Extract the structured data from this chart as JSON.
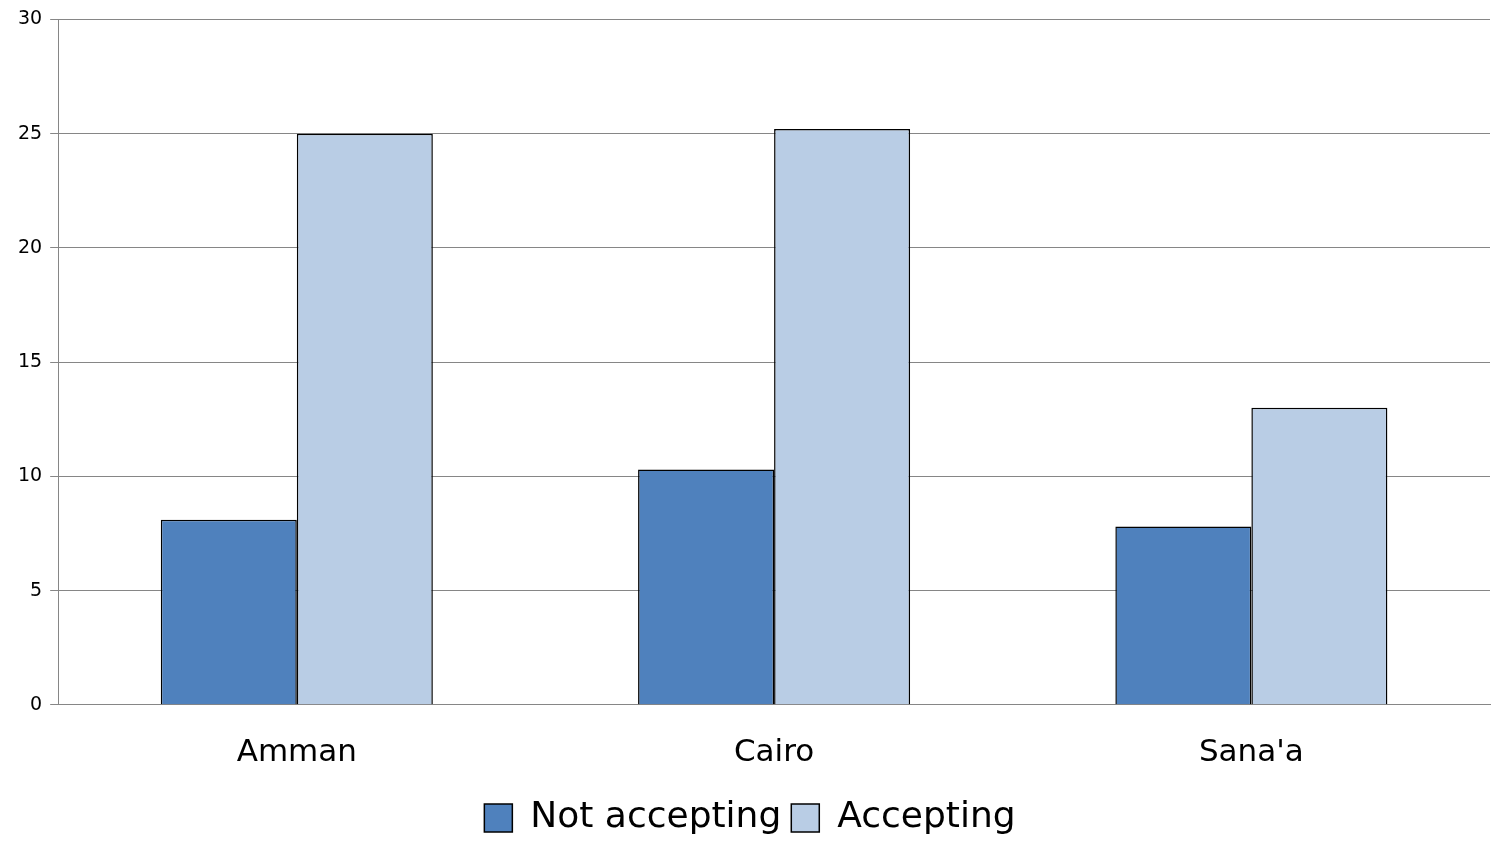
{
  "chart_data": {
    "type": "bar",
    "categories": [
      "Amman",
      "Cairo",
      "Sana'a"
    ],
    "series": [
      {
        "name": "Not accepting",
        "color": "#4f81bd",
        "values": [
          8.1,
          10.3,
          7.8
        ]
      },
      {
        "name": "Accepting",
        "color": "#b9cde5",
        "values": [
          25,
          25.2,
          13
        ]
      }
    ],
    "ylim": [
      0,
      30
    ],
    "yticks": [
      0,
      5,
      10,
      15,
      20,
      25,
      30
    ],
    "grid": "y",
    "legend": "bottom"
  }
}
